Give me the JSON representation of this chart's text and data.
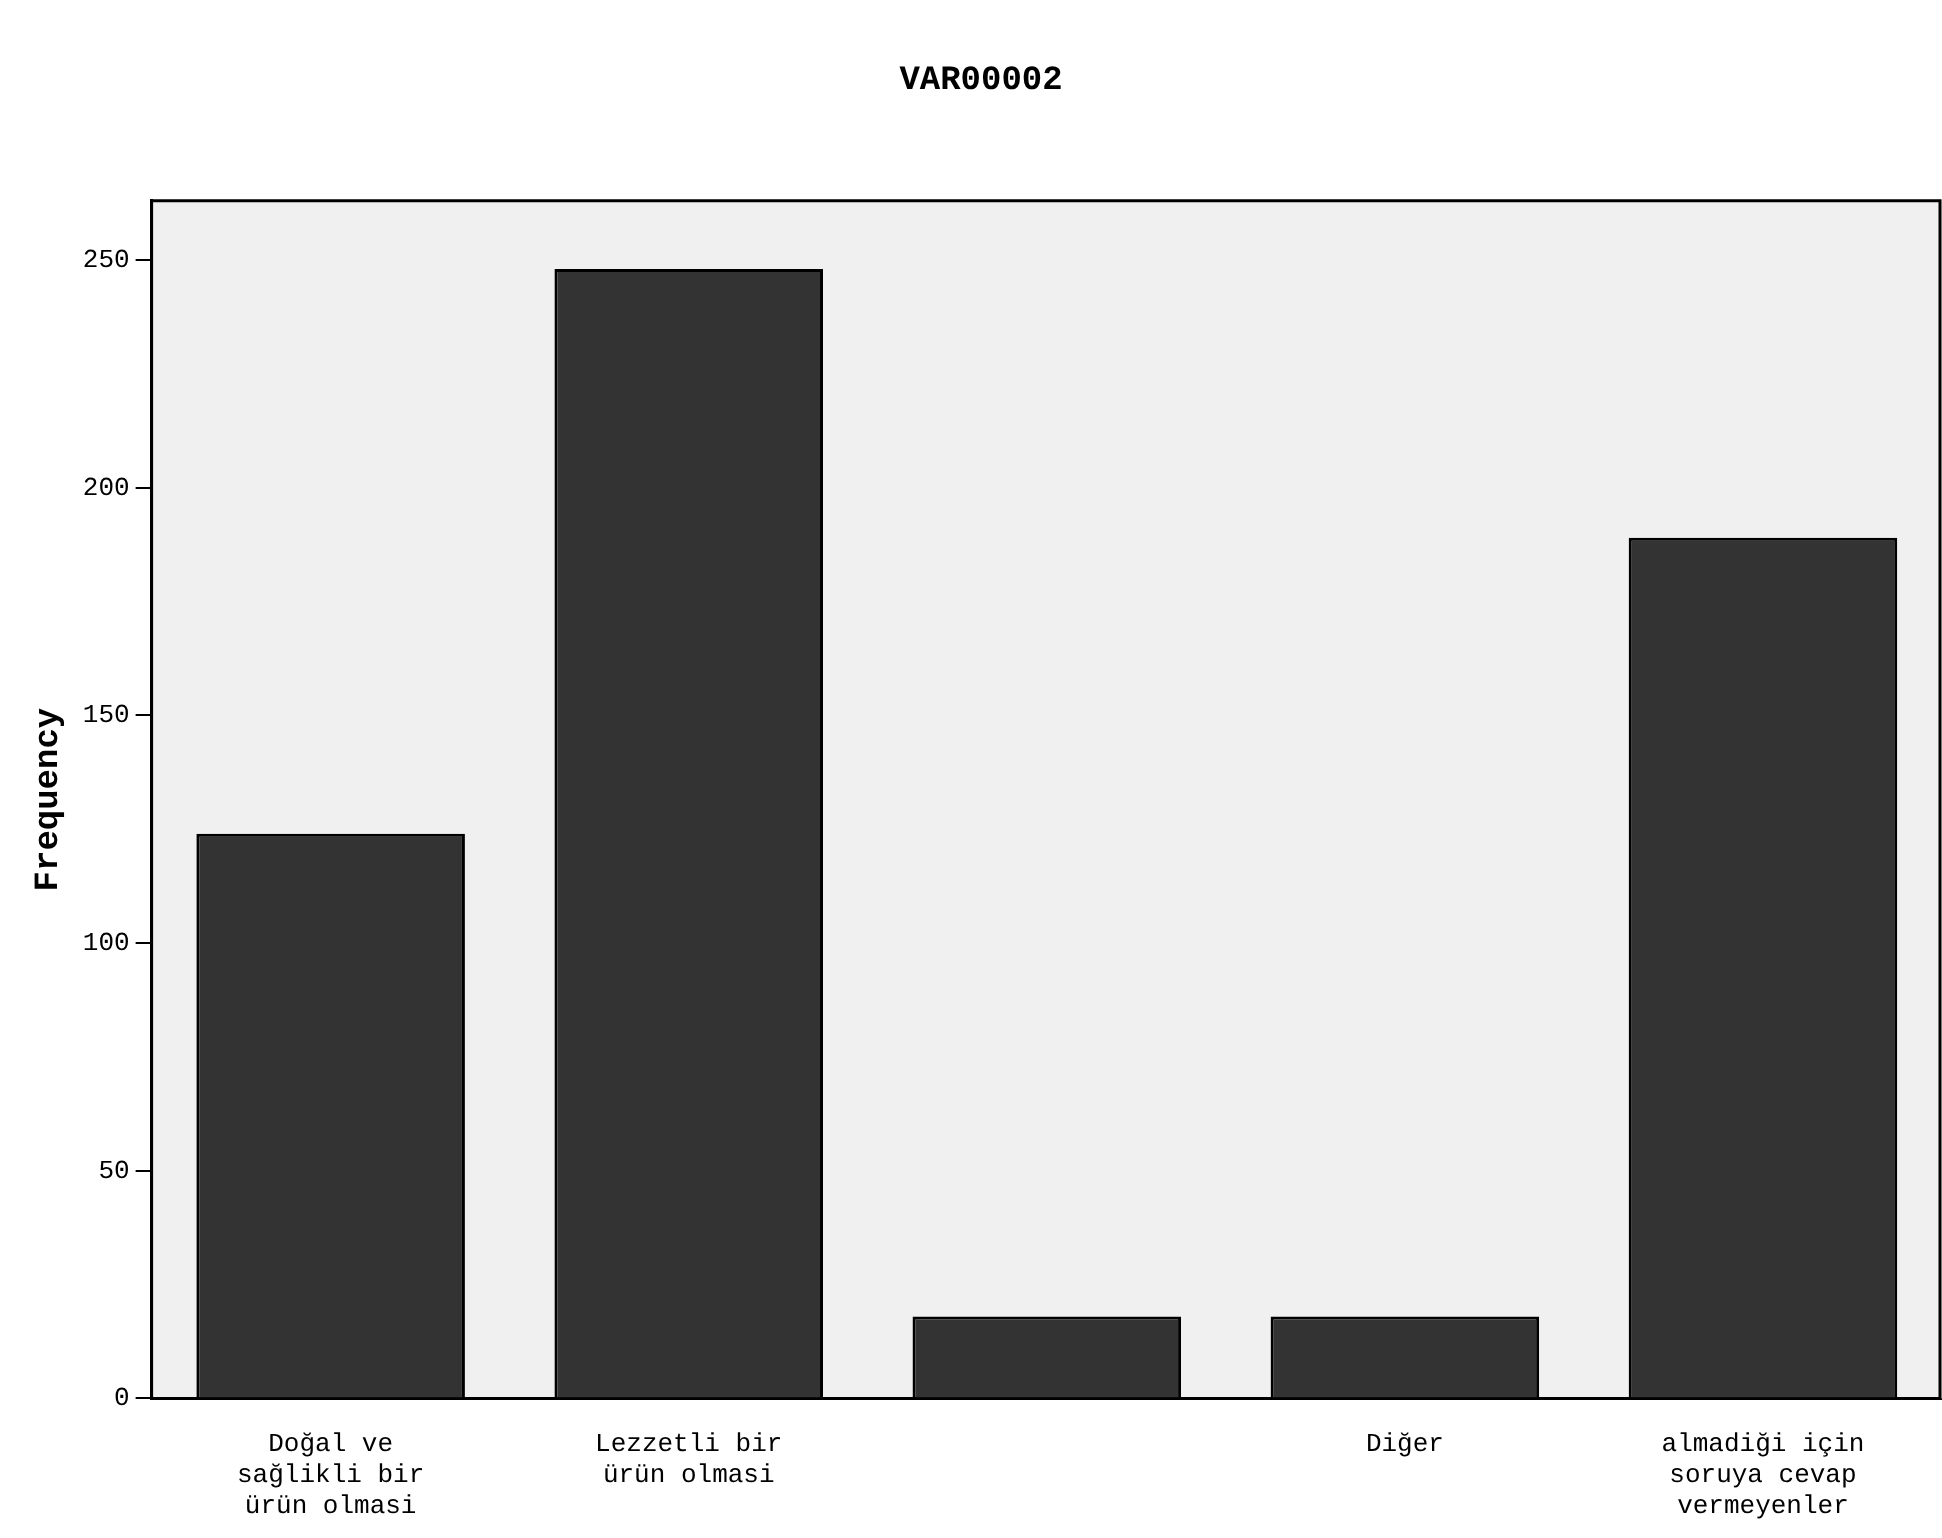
{
  "chart_data": {
    "type": "bar",
    "title": "VAR00002",
    "ylabel": "Frequency",
    "categories": [
      "Doğal ve sağlikli bir ürün olmasi",
      "Lezzetli bir ürün olmasi",
      null,
      "Diğer",
      "almadiği için soruya cevap vermeyenler"
    ],
    "values": [
      124,
      248,
      18,
      18,
      189
    ],
    "color": "#333333",
    "ylim": [
      0,
      263
    ],
    "yticks": [
      0,
      50,
      100,
      150,
      200,
      250
    ],
    "grid": false,
    "legend": false
  }
}
